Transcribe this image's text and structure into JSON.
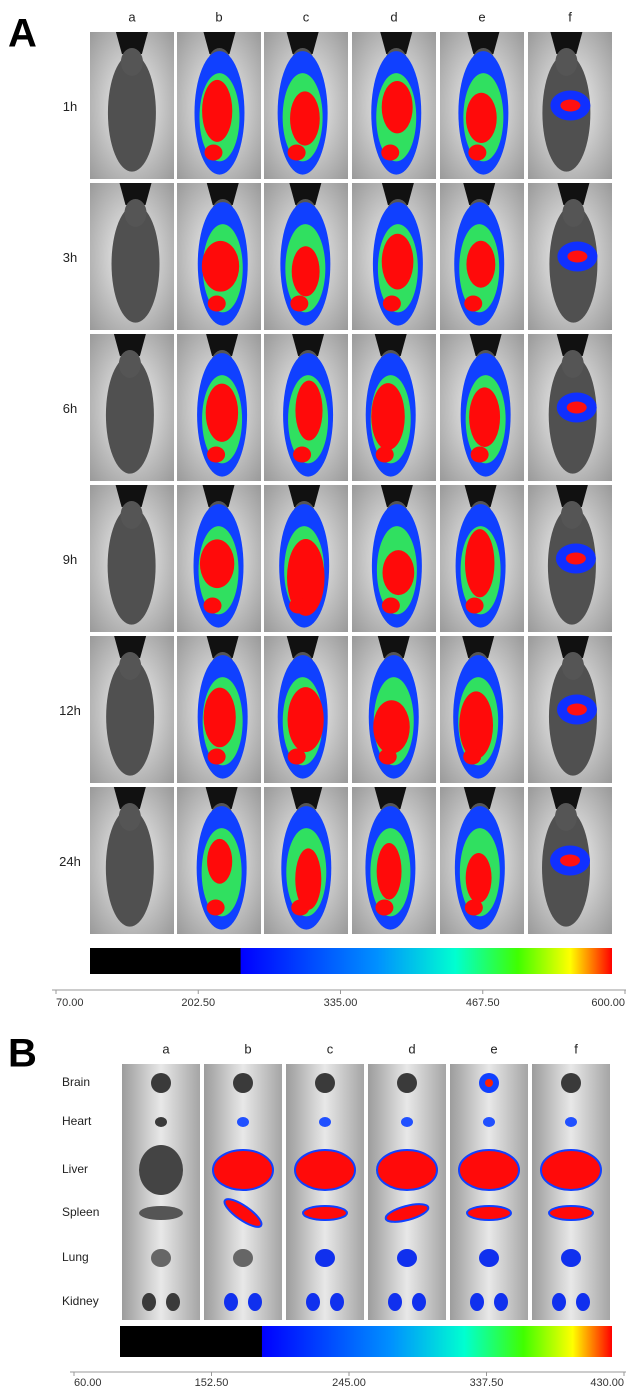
{
  "panel_a": {
    "label": "A",
    "columns": [
      "a",
      "b",
      "c",
      "d",
      "e",
      "f"
    ],
    "rows": [
      "1h",
      "3h",
      "6h",
      "9h",
      "12h",
      "24h"
    ],
    "colorbar_ticks": [
      {
        "value": 70,
        "label": "70.00"
      },
      {
        "value": 202.5,
        "label": "202.50"
      },
      {
        "value": 335,
        "label": "335.00"
      },
      {
        "value": 467.5,
        "label": "467.50"
      },
      {
        "value": 600,
        "label": "600.00"
      }
    ]
  },
  "panel_b": {
    "label": "B",
    "columns": [
      "a",
      "b",
      "c",
      "d",
      "e",
      "f"
    ],
    "organs": [
      "Brain",
      "Heart",
      "Liver",
      "Spleen",
      "Lung",
      "Kidney"
    ],
    "colorbar_ticks": [
      {
        "value": 60,
        "label": "60.00"
      },
      {
        "value": 152.5,
        "label": "152.50"
      },
      {
        "value": 245,
        "label": "245.00"
      },
      {
        "value": 337.5,
        "label": "337.50"
      },
      {
        "value": 430,
        "label": "430.00"
      }
    ]
  }
}
